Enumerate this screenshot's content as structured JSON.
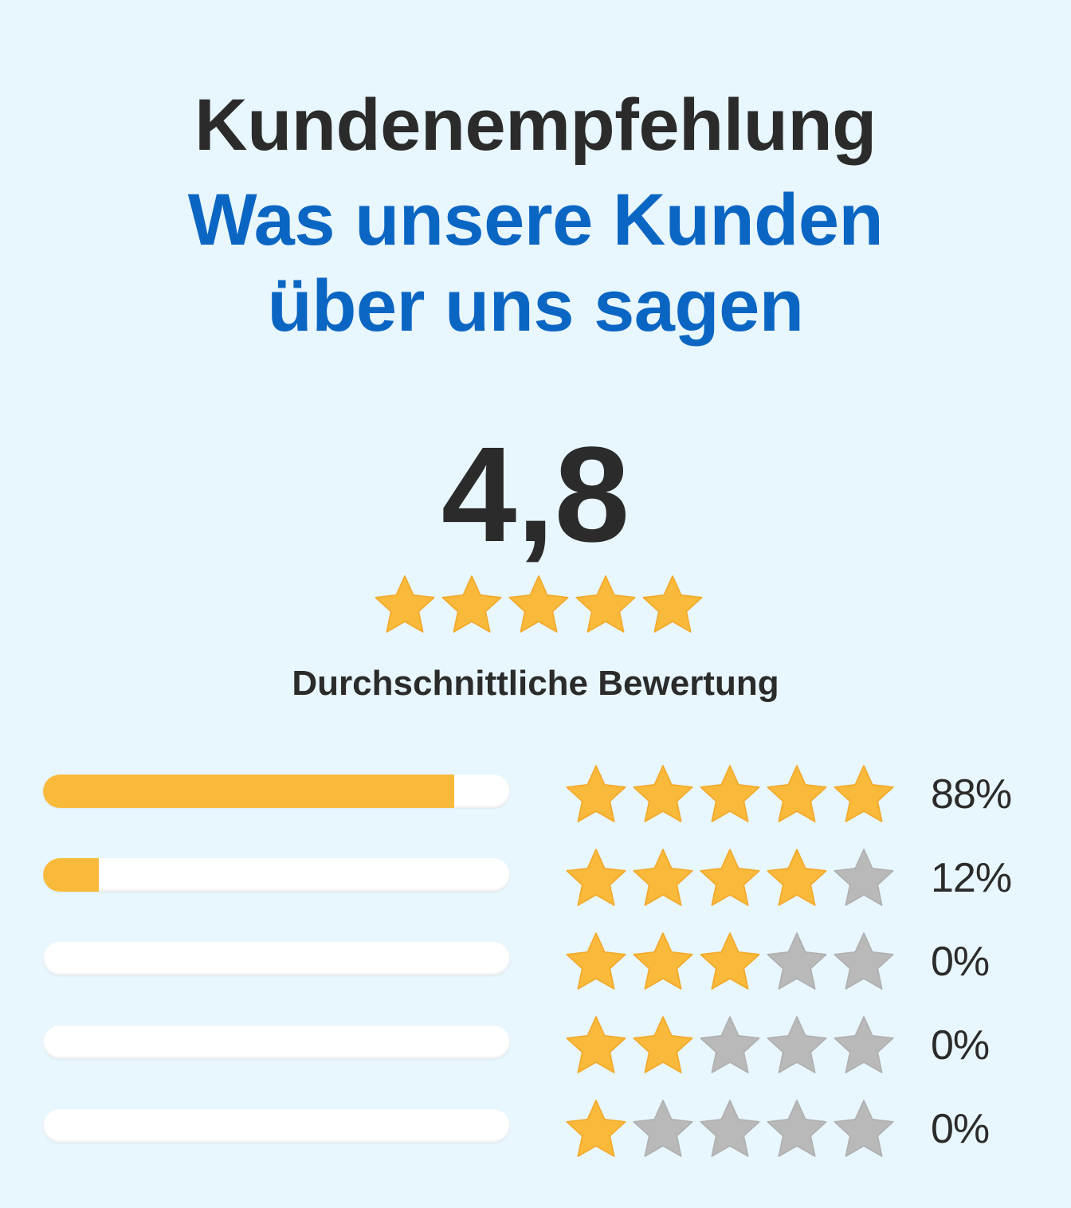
{
  "header": {
    "title": "Kundenempfehlung",
    "subtitle_line1": "Was unsere Kunden",
    "subtitle_line2": "über uns sagen"
  },
  "rating": {
    "score": "4,8",
    "stars": 5,
    "label": "Durchschnittliche Bewertung"
  },
  "distribution": [
    {
      "stars": 5,
      "percent_label": "88%",
      "fill": 0.88
    },
    {
      "stars": 4,
      "percent_label": "12%",
      "fill": 0.12
    },
    {
      "stars": 3,
      "percent_label": "0%",
      "fill": 0
    },
    {
      "stars": 2,
      "percent_label": "0%",
      "fill": 0
    },
    {
      "stars": 1,
      "percent_label": "0%",
      "fill": 0
    }
  ],
  "colors": {
    "star_filled": "#f9b93b",
    "star_empty": "#b9b9b9",
    "accent_blue": "#0b66c3",
    "bar_fill": "#f9b93b"
  },
  "icons": {
    "filled": "star-filled-icon",
    "empty": "star-empty-icon"
  }
}
